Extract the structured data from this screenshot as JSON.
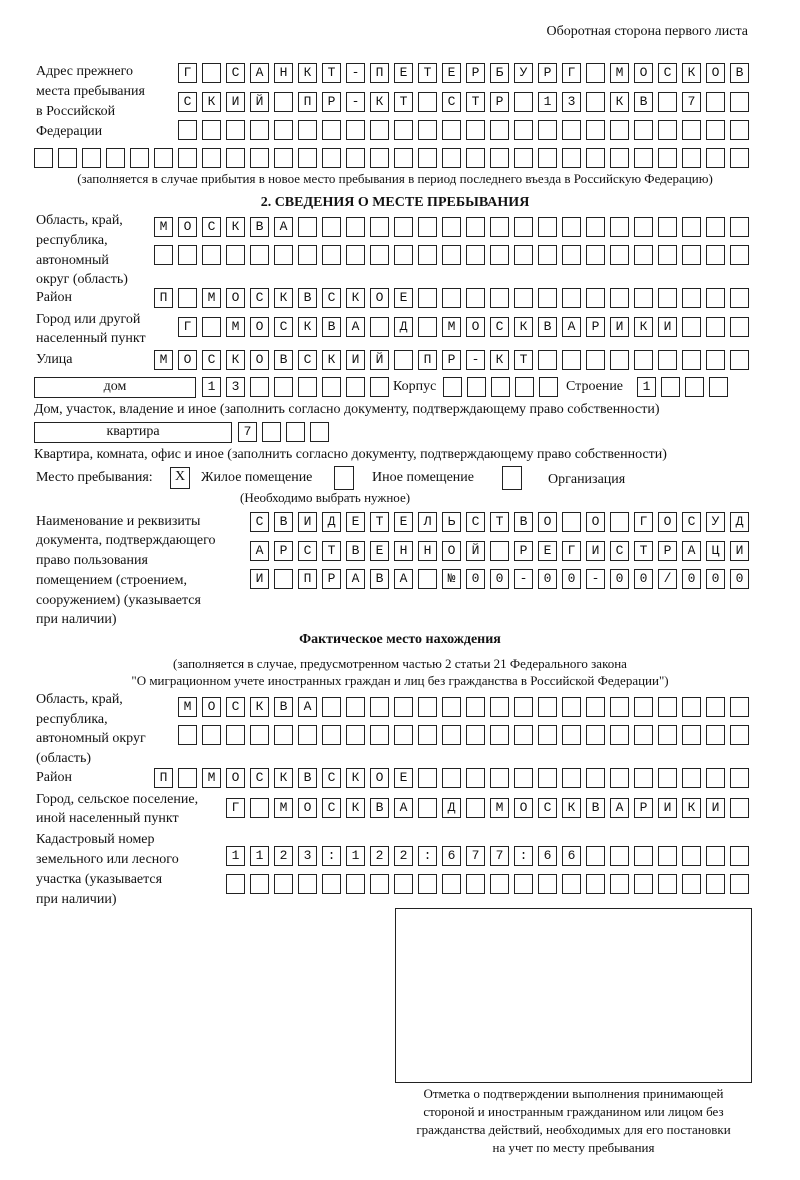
{
  "header": {
    "side_note": "Оборотная сторона первого листа"
  },
  "prev_address": {
    "label": [
      "Адрес прежнего",
      "места пребывания",
      "в Российской",
      "Федерации"
    ],
    "rows": [
      "Г САНКТ-ПЕТЕРБУРГ МОСКОВ",
      "СКИЙ ПР-КТ СТР 13 КВ 7  ",
      "                        ",
      "                              "
    ],
    "caption": "(заполняется в случае прибытия в новое место пребывания в период последнего въезда в Российскую Федерацию)"
  },
  "stay": {
    "heading": "2. СВЕДЕНИЯ О МЕСТЕ ПРЕБЫВАНИЯ",
    "region_label": [
      "Область, край,",
      "республика,",
      "автономный",
      "округ (область)"
    ],
    "region_rows": [
      "МОСКВА                   ",
      "                         "
    ],
    "district_label": "Район",
    "district_row": "П МОСКВСКОЕ              ",
    "city_label": [
      "Город или другой",
      "населенный пункт"
    ],
    "city_row": "Г МОСКВА Д МОСКВАРИКИ   ",
    "street_label": "Улица",
    "street_row": "МОСКОВСКИЙ ПР-КТ         ",
    "house_type": "дом",
    "house_row": "13      ",
    "korpus_label": "Корпус",
    "korpus_row": "     ",
    "building_label": "Строение",
    "building_row": "1   ",
    "house_caption": "Дом, участок, владение и иное (заполнить согласно документу, подтверждающему право собственности)",
    "apt_type": "квартира",
    "apt_row": "7   ",
    "apt_caption": "Квартира, комната, офис и иное (заполнить согласно документу, подтверждающему право собственности)",
    "place_label": "Место пребывания:",
    "options": [
      {
        "label": "Жилое помещение",
        "mark": "Х",
        "checked": true
      },
      {
        "label": "Иное помещение",
        "mark": "",
        "checked": false
      },
      {
        "label": "Организация",
        "mark": "",
        "checked": false
      }
    ],
    "choose_note": "(Необходимо выбрать нужное)",
    "doc_label": [
      "Наименование и реквизиты",
      "документа, подтверждающего",
      "право пользования",
      "помещением (строением,",
      "сооружением) (указывается",
      "при наличии)"
    ],
    "doc_rows": [
      "СВИДЕТЕЛЬСТВО О ГОСУД",
      "АРСТВЕННОЙ РЕГИСТРАЦИ",
      "И ПРАВА №00-00-00/000"
    ]
  },
  "actual": {
    "heading": "Фактическое место нахождения",
    "note": [
      "(заполняется в случае, предусмотренном частью 2 статьи 21 Федерального закона",
      "\"О миграционном учете иностранных граждан и лиц без гражданства в Российской Федерации\")"
    ],
    "region_label": [
      "Область, край,",
      "республика,",
      "автономный округ",
      "(область)"
    ],
    "region_rows": [
      "МОСКВА                  ",
      "                        "
    ],
    "district_label": "Район",
    "district_row": "П МОСКВСКОЕ              ",
    "city_label": [
      "Город, сельское поселение,",
      "иной населенный пункт"
    ],
    "city_row": "Г МОСКВА Д МОСКВАРИКИ ",
    "cadastre_label": [
      "Кадастровый номер",
      "земельного или лесного",
      "участка (указывается",
      "при наличии)"
    ],
    "cadastre_rows": [
      "1123:122:677:66       ",
      "                      "
    ]
  },
  "stamp": {
    "caption": [
      "Отметка о подтверждении выполнения принимающей",
      "стороной и иностранным гражданином или лицом без",
      "гражданства действий, необходимых для его постановки",
      "на учет по месту пребывания"
    ]
  }
}
